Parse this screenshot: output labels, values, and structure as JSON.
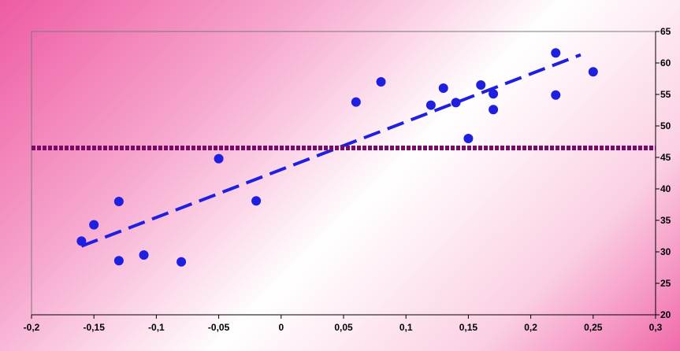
{
  "chart_data": {
    "type": "scatter",
    "xlim": [
      -0.2,
      0.3
    ],
    "ylim": [
      20,
      65
    ],
    "x_ticks": [
      -0.2,
      -0.15,
      -0.1,
      -0.05,
      0,
      0.05,
      0.1,
      0.15,
      0.2,
      0.25,
      0.3
    ],
    "x_tick_labels": [
      "-0,2",
      "-0,15",
      "-0,1",
      "-0,05",
      "0",
      "0,05",
      "0,1",
      "0,15",
      "0,2",
      "0,25",
      "0,3"
    ],
    "y_ticks": [
      20,
      25,
      30,
      35,
      40,
      45,
      50,
      55,
      60,
      65
    ],
    "y_tick_labels": [
      "20",
      "25",
      "30",
      "35",
      "40",
      "45",
      "50",
      "55",
      "60",
      "65"
    ],
    "y_axis_side": "right",
    "grid": false,
    "series": [
      {
        "style": "markers",
        "color": "#1f1fe0",
        "points": [
          {
            "x": -0.16,
            "y": 31.7
          },
          {
            "x": -0.15,
            "y": 34.3
          },
          {
            "x": -0.13,
            "y": 38.0
          },
          {
            "x": -0.13,
            "y": 28.6
          },
          {
            "x": -0.11,
            "y": 29.5
          },
          {
            "x": -0.08,
            "y": 28.4
          },
          {
            "x": -0.05,
            "y": 44.8
          },
          {
            "x": -0.02,
            "y": 38.1
          },
          {
            "x": 0.06,
            "y": 53.8
          },
          {
            "x": 0.08,
            "y": 57.0
          },
          {
            "x": 0.12,
            "y": 53.3
          },
          {
            "x": 0.13,
            "y": 56.0
          },
          {
            "x": 0.14,
            "y": 53.7
          },
          {
            "x": 0.15,
            "y": 48.0
          },
          {
            "x": 0.16,
            "y": 56.5
          },
          {
            "x": 0.17,
            "y": 55.1
          },
          {
            "x": 0.17,
            "y": 52.6
          },
          {
            "x": 0.22,
            "y": 61.6
          },
          {
            "x": 0.22,
            "y": 54.9
          },
          {
            "x": 0.25,
            "y": 58.6
          }
        ]
      },
      {
        "style": "dashed-line",
        "color": "#1f1fe0",
        "points": [
          {
            "x": -0.16,
            "y": 30.9
          },
          {
            "x": 0.24,
            "y": 61.3
          }
        ]
      },
      {
        "style": "dotted-line",
        "color": "#7a0a6a",
        "points": [
          {
            "x": -0.2,
            "y": 46.5
          },
          {
            "x": 0.3,
            "y": 46.5
          }
        ]
      }
    ]
  }
}
